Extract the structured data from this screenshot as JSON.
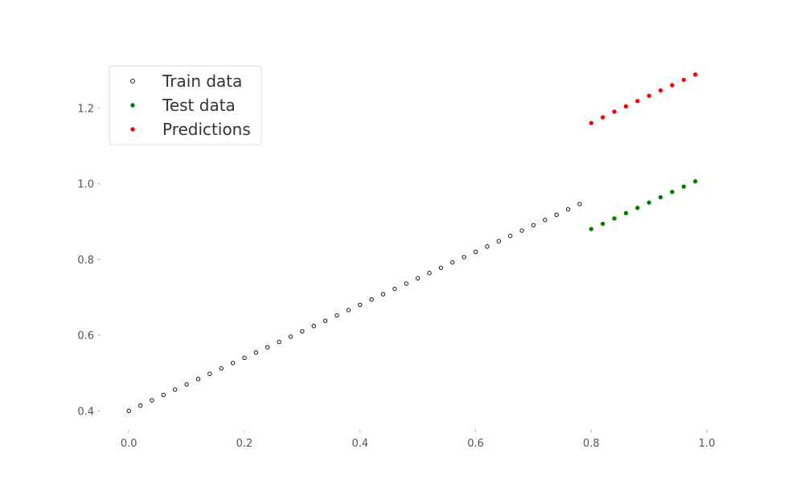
{
  "chart_data": {
    "type": "scatter",
    "title": "",
    "xlabel": "",
    "ylabel": "",
    "xlim": [
      -0.049,
      1.029
    ],
    "ylim": [
      0.35,
      1.33
    ],
    "xticks": [
      0.0,
      0.2,
      0.4,
      0.6,
      0.8,
      1.0
    ],
    "xtick_labels": [
      "0.0",
      "0.2",
      "0.4",
      "0.6",
      "0.8",
      "1.0"
    ],
    "yticks": [
      0.4,
      0.6,
      0.8,
      1.0,
      1.2
    ],
    "ytick_labels": [
      "0.4",
      "0.6",
      "0.8",
      "1.0",
      "1.2"
    ],
    "grid": false,
    "legend_position": "top-left",
    "series": [
      {
        "name": "Train data",
        "marker": "hollow",
        "color": "#000000",
        "x": [
          0.0,
          0.02,
          0.04,
          0.06,
          0.08,
          0.1,
          0.12,
          0.14,
          0.16,
          0.18,
          0.2,
          0.22,
          0.24,
          0.26,
          0.28,
          0.3,
          0.32,
          0.34,
          0.36,
          0.38,
          0.4,
          0.42,
          0.44,
          0.46,
          0.48,
          0.5,
          0.52,
          0.54,
          0.56,
          0.58,
          0.6,
          0.62,
          0.64,
          0.66,
          0.68,
          0.7,
          0.72,
          0.74,
          0.76,
          0.78
        ],
        "y": [
          0.4,
          0.414,
          0.428,
          0.442,
          0.456,
          0.47,
          0.484,
          0.498,
          0.512,
          0.526,
          0.54,
          0.554,
          0.568,
          0.582,
          0.596,
          0.61,
          0.624,
          0.638,
          0.652,
          0.666,
          0.68,
          0.694,
          0.708,
          0.722,
          0.736,
          0.75,
          0.764,
          0.778,
          0.792,
          0.806,
          0.82,
          0.834,
          0.848,
          0.862,
          0.876,
          0.89,
          0.904,
          0.918,
          0.932,
          0.946
        ]
      },
      {
        "name": "Test data",
        "marker": "filled",
        "color": "#008000",
        "x": [
          0.8,
          0.82,
          0.84,
          0.86,
          0.88,
          0.9,
          0.92,
          0.94,
          0.96,
          0.98
        ],
        "y": [
          0.88,
          0.894,
          0.908,
          0.922,
          0.936,
          0.95,
          0.964,
          0.978,
          0.992,
          1.006
        ]
      },
      {
        "name": "Predictions",
        "marker": "filled",
        "color": "#ff0000",
        "x": [
          0.8,
          0.82,
          0.84,
          0.86,
          0.88,
          0.9,
          0.92,
          0.94,
          0.96,
          0.98
        ],
        "y": [
          1.16,
          1.175,
          1.19,
          1.204,
          1.218,
          1.232,
          1.246,
          1.26,
          1.274,
          1.288
        ]
      }
    ]
  }
}
